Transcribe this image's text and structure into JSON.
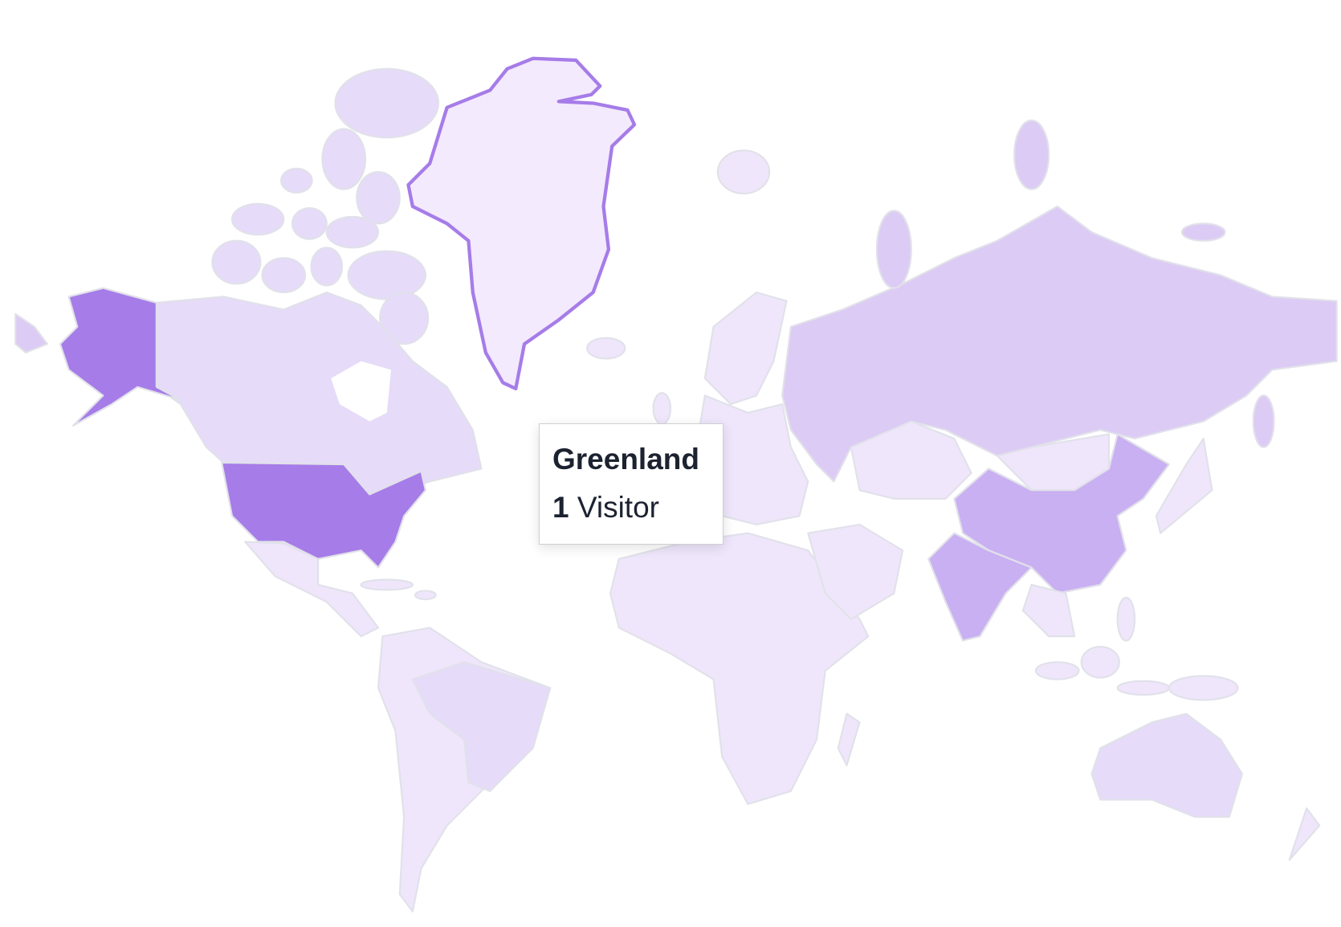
{
  "tooltip": {
    "country": "Greenland",
    "count": "1",
    "unit": "Visitor"
  },
  "highlighted_country": "Greenland",
  "colors": {
    "level_high": "#a67ce8",
    "level_mid": "#c9b0f2",
    "level_low": "#dccbf5",
    "level_lower": "#e6dbf8",
    "level_min": "#efe6fb",
    "hover_fill": "#f3eafd",
    "hover_stroke": "#a67ce8",
    "border": "#e1e1ea",
    "tooltip_text": "#1c2230"
  }
}
